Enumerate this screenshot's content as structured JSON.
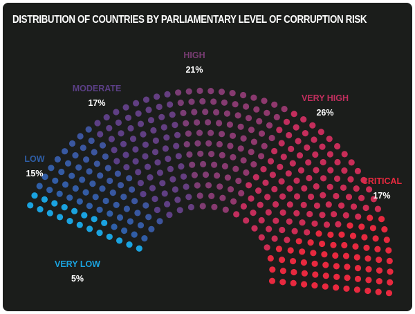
{
  "chart_data": {
    "type": "parliament",
    "title": "DISTRIBUTION OF COUNTRIES BY PARLIAMENTARY LEVEL OF CORRUPTION RISK",
    "categories": [
      "VERY LOW",
      "LOW",
      "MODERATE",
      "HIGH",
      "VERY HIGH",
      "CRITICAL"
    ],
    "values": [
      5,
      15,
      17,
      21,
      26,
      17
    ],
    "value_labels": [
      "5%",
      "15%",
      "17%",
      "21%",
      "26%",
      "17%"
    ],
    "colors": [
      "#1aa3e0",
      "#2f5fa8",
      "#5b3f86",
      "#7a3d74",
      "#c12e5e",
      "#e8293f"
    ],
    "unit": "%"
  }
}
